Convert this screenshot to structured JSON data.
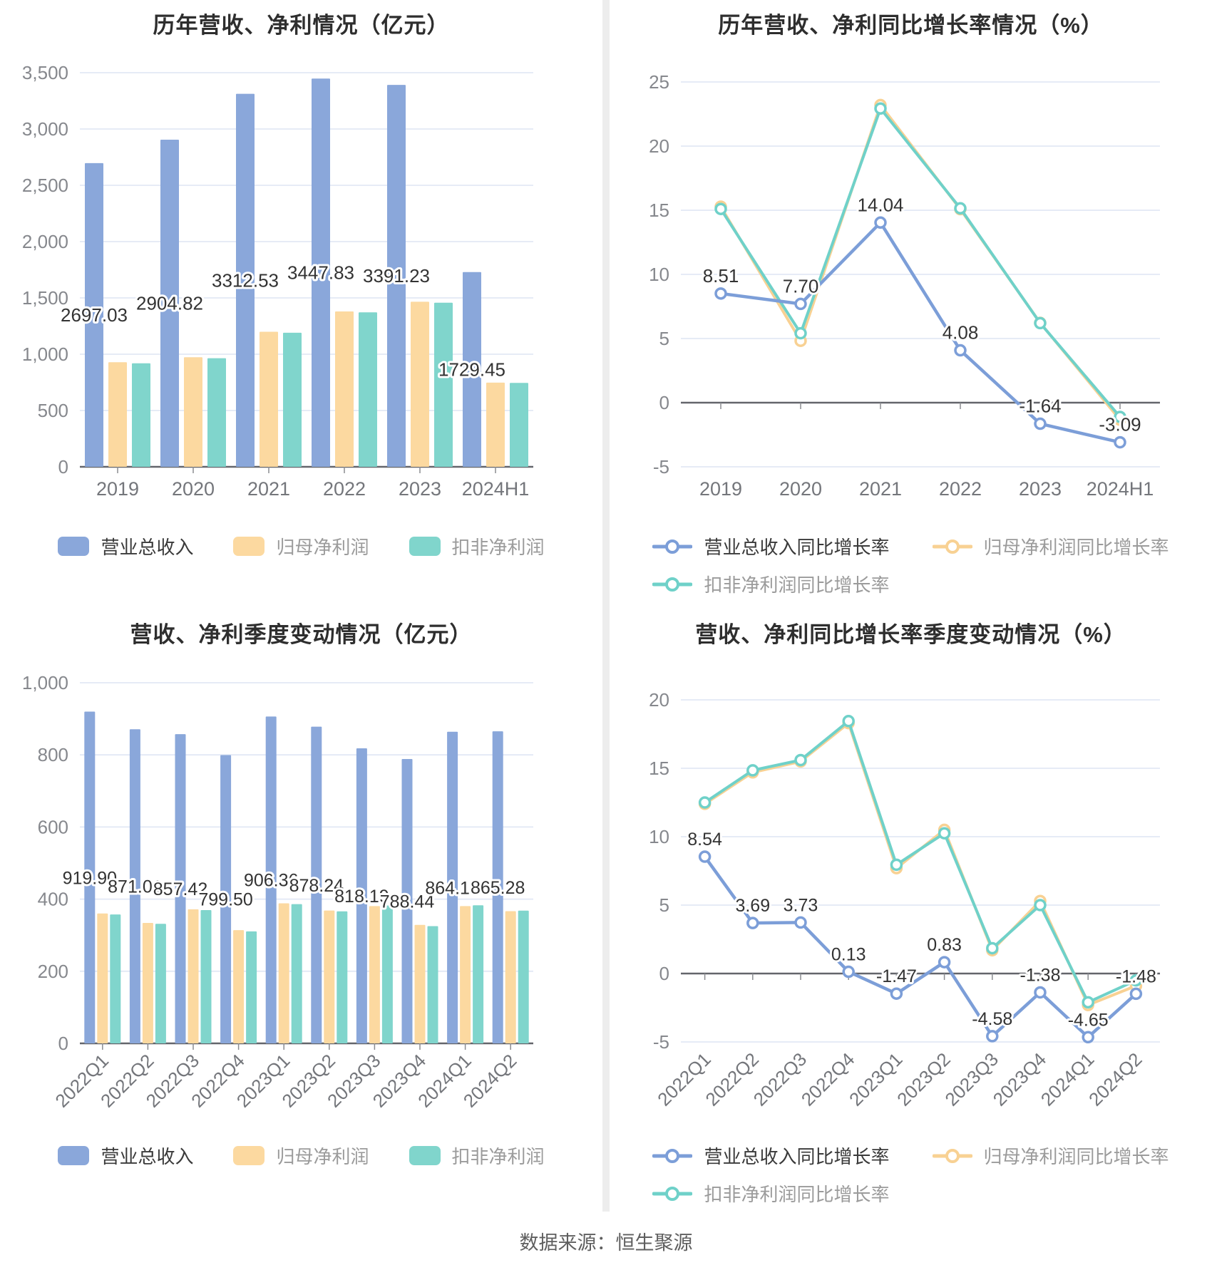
{
  "footer": {
    "source_note": "数据来源：恒生聚源"
  },
  "palette": {
    "revenue_bar": "#8aa7da",
    "net_profit_bar": "#fcd9a0",
    "deducted_bar": "#80d5cc",
    "revenue_line": "#7c9ed8",
    "net_profit_line": "#f8d193",
    "deducted_line": "#6fd1c9",
    "grid_line": "#e2e8f5",
    "zero_axis": "#63656b",
    "tick_text": "#86888d",
    "axis_label_text": "#74767b",
    "data_label_text": "#333333",
    "title_text": "#2e2e2e"
  },
  "chart_data": [
    {
      "id": "yearly-bars",
      "type": "bar",
      "title": "历年营收、净利情况（亿元）",
      "categories": [
        "2019",
        "2020",
        "2021",
        "2022",
        "2023",
        "2024H1"
      ],
      "ylim": [
        0,
        3500
      ],
      "yticks": [
        "0",
        "500",
        "1,000",
        "1,500",
        "2,000",
        "2,500",
        "3,000",
        "3,500"
      ],
      "grid": true,
      "legend_position": "bottom",
      "series": [
        {
          "key": "revenue",
          "name": "营业总收入",
          "color": "#8aa7da",
          "values": [
            2697.03,
            2904.82,
            3312.53,
            3447.83,
            3391.23,
            1729.45
          ],
          "labels": [
            "2697.03",
            "2904.82",
            "3312.53",
            "3447.83",
            "3391.23",
            "1729.45"
          ]
        },
        {
          "key": "net-profit",
          "name": "归母净利润",
          "color": "#fcd9a0",
          "values": [
            928.67,
            973.42,
            1199.22,
            1380.12,
            1466.02,
            747.43
          ]
        },
        {
          "key": "deducted-profit",
          "name": "扣非净利润",
          "color": "#80d5cc",
          "values": [
            919.0,
            964.5,
            1191.0,
            1371.5,
            1457.5,
            745.0
          ]
        }
      ]
    },
    {
      "id": "yearly-growth",
      "type": "line",
      "title": "历年营收、净利同比增长率情况（%）",
      "categories": [
        "2019",
        "2020",
        "2021",
        "2022",
        "2023",
        "2024H1"
      ],
      "ylim": [
        -5,
        25
      ],
      "yticks": [
        "-5",
        "0",
        "5",
        "10",
        "15",
        "20",
        "25"
      ],
      "grid": true,
      "legend_position": "bottom",
      "series": [
        {
          "key": "revenue-growth",
          "name": "营业总收入同比增长率",
          "color": "#7c9ed8",
          "values": [
            8.51,
            7.7,
            14.04,
            4.08,
            -1.64,
            -3.09
          ],
          "labels": [
            "8.51",
            "7.70",
            "14.04",
            "4.08",
            "-1.64",
            "-3.09"
          ]
        },
        {
          "key": "net-profit-growth",
          "name": "归母净利润同比增长率",
          "color": "#f8d193",
          "values": [
            15.28,
            4.82,
            23.2,
            15.08,
            6.22,
            -1.33
          ]
        },
        {
          "key": "deducted-profit-growth",
          "name": "扣非净利润同比增长率",
          "color": "#6fd1c9",
          "values": [
            15.1,
            5.41,
            22.93,
            15.15,
            6.2,
            -1.11
          ]
        }
      ]
    },
    {
      "id": "quarterly-bars",
      "type": "bar",
      "title": "营收、净利季度变动情况（亿元）",
      "categories": [
        "2022Q1",
        "2022Q2",
        "2022Q3",
        "2022Q4",
        "2023Q1",
        "2023Q2",
        "2023Q3",
        "2023Q4",
        "2024Q1",
        "2024Q2"
      ],
      "ylim": [
        0,
        1000
      ],
      "yticks": [
        "0",
        "200",
        "400",
        "600",
        "800",
        "1,000"
      ],
      "grid": true,
      "legend_position": "bottom",
      "series": [
        {
          "key": "revenue",
          "name": "营业总收入",
          "color": "#8aa7da",
          "values": [
            919.9,
            871.01,
            857.42,
            799.5,
            906.36,
            878.24,
            818.19,
            788.44,
            864.18,
            865.28
          ],
          "labels": [
            "919.90",
            "871.01",
            "857.42",
            "799.50",
            "906.36",
            "878.24",
            "818.19",
            "788.44",
            "864.18",
            "865.28"
          ]
        },
        {
          "key": "net-profit",
          "name": "归母净利润",
          "color": "#fcd9a0",
          "values": [
            360.22,
            334.08,
            371.81,
            314.01,
            388.39,
            368.37,
            380.73,
            328.53,
            380.77,
            366.64
          ]
        },
        {
          "key": "deducted-profit",
          "name": "扣非净利润",
          "color": "#80d5cc",
          "values": [
            357.5,
            331.5,
            369.5,
            310.5,
            386.0,
            366.0,
            382.5,
            325.0,
            383.0,
            368.0
          ]
        }
      ]
    },
    {
      "id": "quarterly-growth",
      "type": "line",
      "title": "营收、净利同比增长率季度变动情况（%）",
      "categories": [
        "2022Q1",
        "2022Q2",
        "2022Q3",
        "2022Q4",
        "2023Q1",
        "2023Q2",
        "2023Q3",
        "2023Q4",
        "2024Q1",
        "2024Q2"
      ],
      "ylim": [
        -5,
        20
      ],
      "yticks": [
        "-5",
        "0",
        "5",
        "10",
        "15",
        "20"
      ],
      "grid": true,
      "legend_position": "bottom",
      "series": [
        {
          "key": "revenue-growth",
          "name": "营业总收入同比增长率",
          "color": "#7c9ed8",
          "values": [
            8.54,
            3.69,
            3.73,
            0.13,
            -1.47,
            0.83,
            -4.58,
            -1.38,
            -4.65,
            -1.48
          ],
          "labels": [
            "8.54",
            "3.69",
            "3.73",
            "0.13",
            "-1.47",
            "0.83",
            "-4.58",
            "-1.38",
            "-4.65",
            "-1.48"
          ]
        },
        {
          "key": "net-profit-growth",
          "name": "归母净利润同比增长率",
          "color": "#f8d193",
          "values": [
            12.4,
            14.7,
            15.5,
            18.3,
            7.7,
            10.5,
            1.7,
            5.3,
            -2.3,
            -0.9
          ]
        },
        {
          "key": "deducted-profit-growth",
          "name": "扣非净利润同比增长率",
          "color": "#6fd1c9",
          "values": [
            12.5,
            14.85,
            15.6,
            18.45,
            7.95,
            10.25,
            1.85,
            5.0,
            -2.1,
            -0.5
          ]
        }
      ]
    }
  ]
}
